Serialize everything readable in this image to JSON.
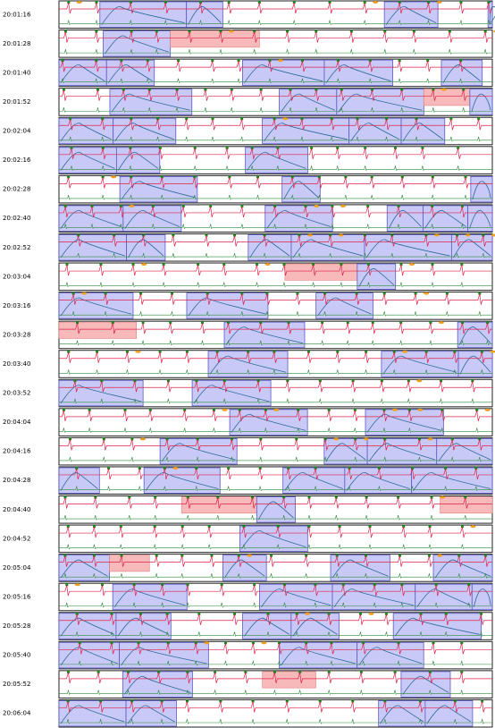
{
  "rows": [
    "20:01:16",
    "20:01:28",
    "20:01:40",
    "20:01:52",
    "20:02:04",
    "20:02:16",
    "20:02:28",
    "20:02:40",
    "20:02:52",
    "20:03:04",
    "20:03:16",
    "20:03:28",
    "20:03:40",
    "20:03:52",
    "20:04:04",
    "20:04:16",
    "20:04:28",
    "20:04:40",
    "20:04:52",
    "20:05:04",
    "20:05:16",
    "20:05:28",
    "20:05:40",
    "20:05:52",
    "20:06:04"
  ]
}
